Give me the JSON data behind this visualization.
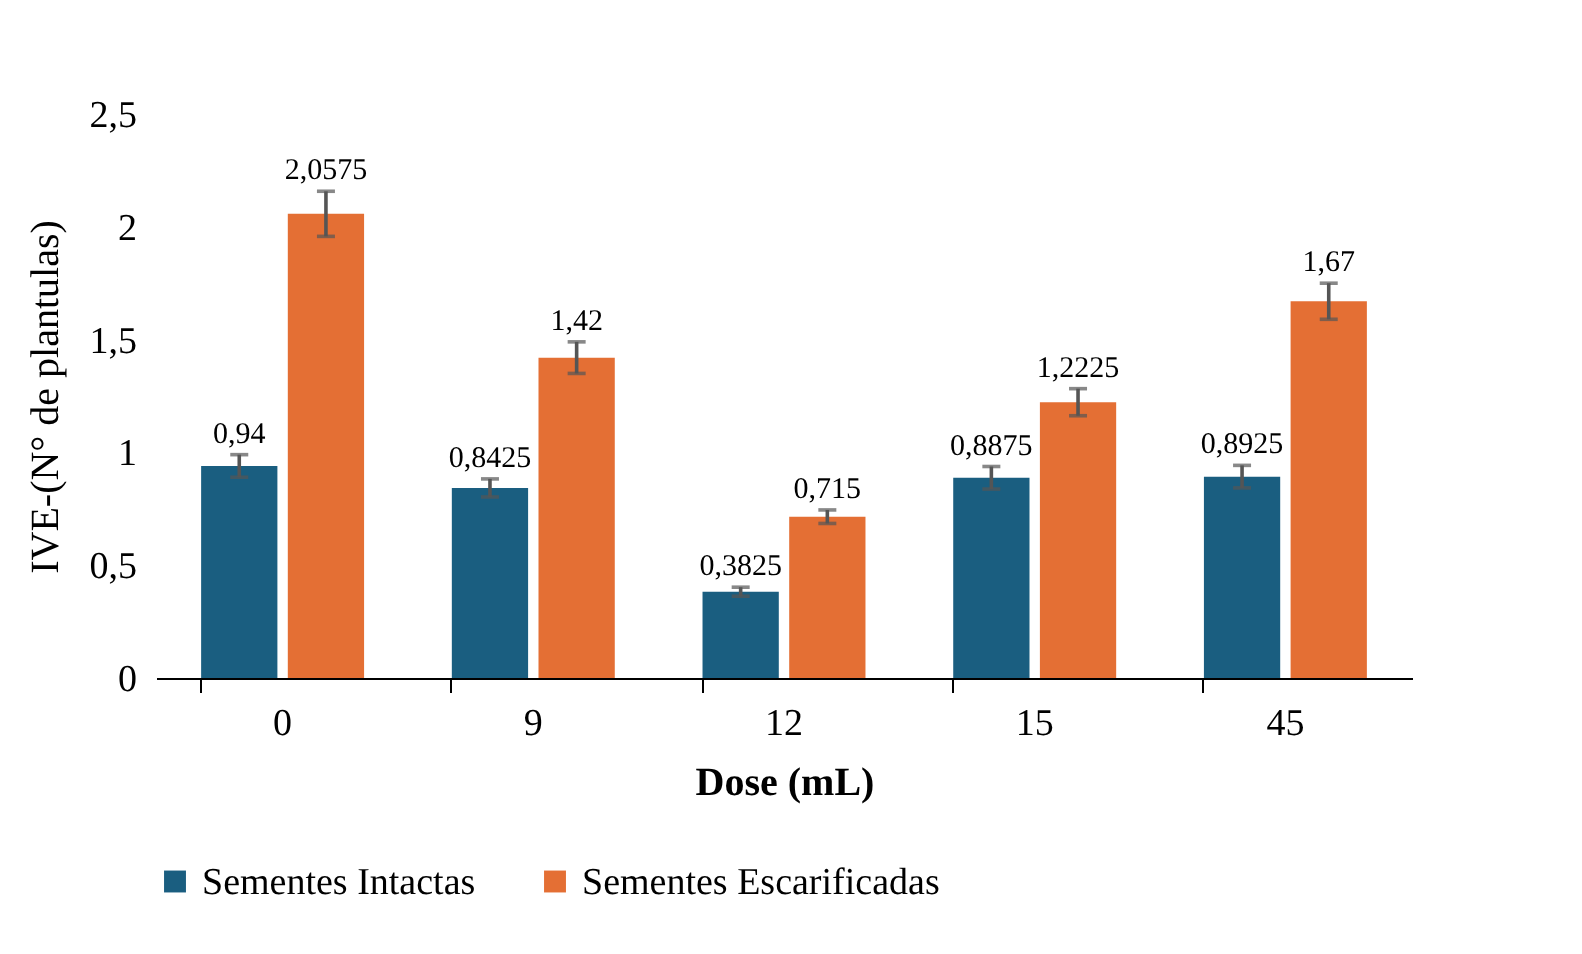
{
  "chart_data": {
    "type": "bar",
    "xlabel": "Dose (mL)",
    "ylabel": "IVE-(N° de plantulas)",
    "categories": [
      "0",
      "9",
      "12",
      "15",
      "45"
    ],
    "series": [
      {
        "name": "Sementes Intactas",
        "color": "#1a5e80",
        "values": [
          0.94,
          0.8425,
          0.3825,
          0.8875,
          0.8925
        ],
        "errors": [
          0.05,
          0.04,
          0.02,
          0.05,
          0.05
        ],
        "value_labels": [
          "0,94",
          "0,8425",
          "0,3825",
          "0,8875",
          "0,8925"
        ]
      },
      {
        "name": "Sementes Escarificadas",
        "color": "#e46f34",
        "values": [
          2.0575,
          1.42,
          0.715,
          1.2225,
          1.67
        ],
        "errors": [
          0.1,
          0.07,
          0.03,
          0.06,
          0.08
        ],
        "value_labels": [
          "2,0575",
          "1,42",
          "0,715",
          "1,2225",
          "1,67"
        ]
      }
    ],
    "ylim": [
      0,
      2.5
    ],
    "yticks": [
      0,
      {
        "value": 0.5,
        "label": "0,5"
      },
      1,
      {
        "value": 1.5,
        "label": "1,5"
      },
      2,
      {
        "value": 2.5,
        "label": "2,5"
      }
    ],
    "grid": false,
    "legend": "bottom"
  }
}
